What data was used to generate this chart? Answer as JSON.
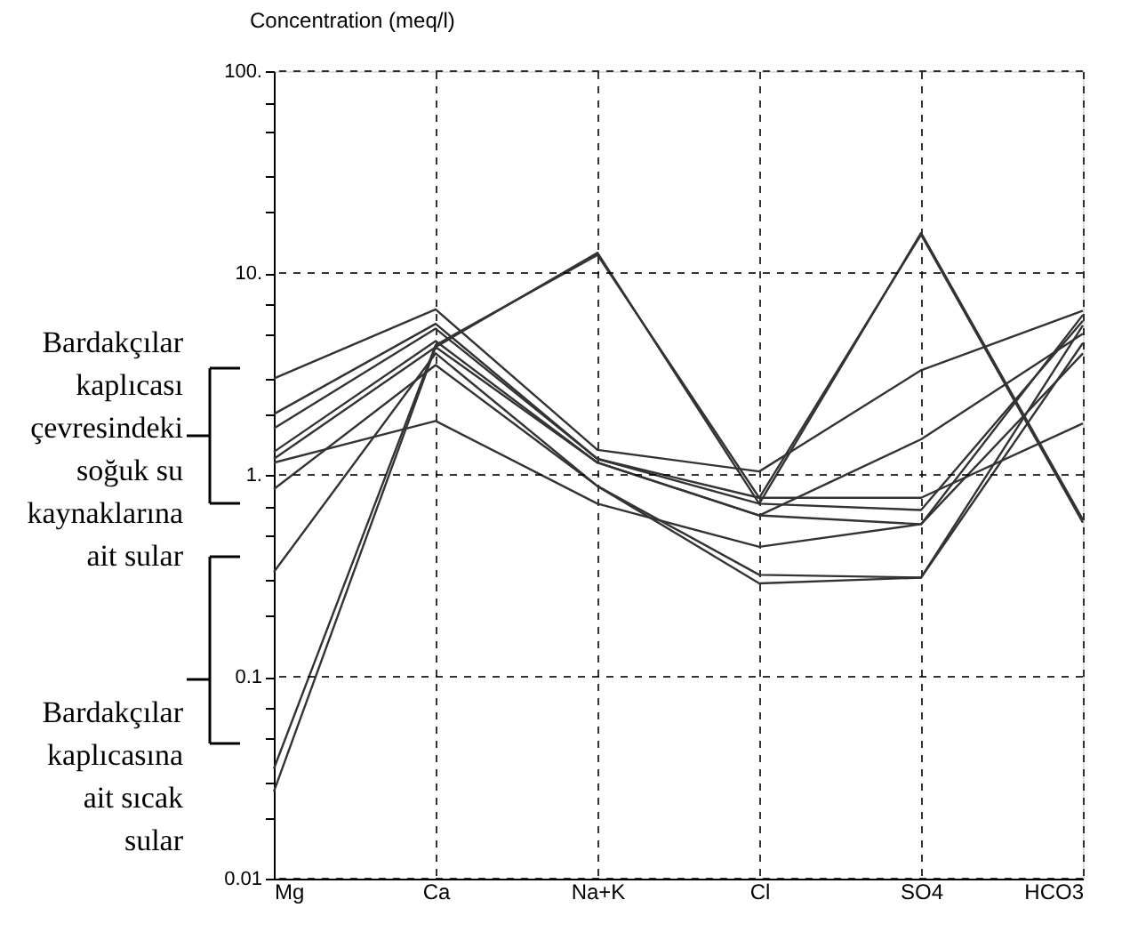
{
  "chart_data": {
    "type": "line",
    "ylabel": "Concentration (meq/l)",
    "log": true,
    "grid": true,
    "legend": false,
    "marker": "none",
    "line_style": "solid",
    "categories": [
      "Mg",
      "Ca",
      "Na+K",
      "Cl",
      "SO4",
      "HCO3"
    ],
    "ylim": [
      0.01,
      100
    ],
    "yticks": [
      {
        "value": 0.01,
        "label": "0.01"
      },
      {
        "value": 0.02,
        "label": null
      },
      {
        "value": 0.03,
        "label": null
      },
      {
        "value": 0.05,
        "label": null
      },
      {
        "value": 0.07,
        "label": null
      },
      {
        "value": 0.1,
        "label": "0.1"
      },
      {
        "value": 0.2,
        "label": null
      },
      {
        "value": 0.3,
        "label": null
      },
      {
        "value": 0.5,
        "label": null
      },
      {
        "value": 0.7,
        "label": null
      },
      {
        "value": 1,
        "label": "1."
      },
      {
        "value": 2,
        "label": null
      },
      {
        "value": 3,
        "label": null
      },
      {
        "value": 5,
        "label": null
      },
      {
        "value": 7,
        "label": null
      },
      {
        "value": 10,
        "label": "10."
      },
      {
        "value": 20,
        "label": null
      },
      {
        "value": 30,
        "label": null
      },
      {
        "value": 50,
        "label": null
      },
      {
        "value": 70,
        "label": null
      },
      {
        "value": 100,
        "label": "100."
      }
    ],
    "series": [
      {
        "color": "#333333",
        "values": [
          3.0,
          6.6,
          1.33,
          1.04,
          3.3,
          6.5
        ]
      },
      {
        "color": "#333333",
        "values": [
          2.0,
          5.6,
          1.2,
          0.77,
          0.77,
          1.8
        ]
      },
      {
        "color": "#333333",
        "values": [
          1.7,
          5.3,
          1.2,
          0.72,
          0.67,
          5.8
        ]
      },
      {
        "color": "#333333",
        "values": [
          1.3,
          4.6,
          1.15,
          0.63,
          1.5,
          5.0
        ]
      },
      {
        "color": "#333333",
        "values": [
          1.2,
          4.3,
          1.15,
          0.63,
          0.57,
          6.2
        ]
      },
      {
        "color": "#333333",
        "values": [
          1.15,
          1.85,
          0.72,
          0.44,
          0.57,
          4.0
        ]
      },
      {
        "color": "#333333",
        "values": [
          0.85,
          3.5,
          0.88,
          0.32,
          0.31,
          5.5
        ]
      },
      {
        "color": "#333333",
        "values": [
          0.33,
          4.0,
          0.88,
          0.29,
          0.31,
          4.5
        ]
      },
      {
        "color": "#333333",
        "values": [
          0.027,
          4.3,
          12.6,
          0.72,
          15.8,
          0.6
        ]
      },
      {
        "color": "#333333",
        "values": [
          0.035,
          4.4,
          12.3,
          0.77,
          15.5,
          0.58
        ]
      }
    ],
    "annotations": [
      "Bardakçılar\nkaplıcası\nçevresindeki\nsoğuk su\nkaynaklarına\nait sular",
      "Bardakçılar\nkaplıcasına\nait sıcak\nsular"
    ]
  }
}
